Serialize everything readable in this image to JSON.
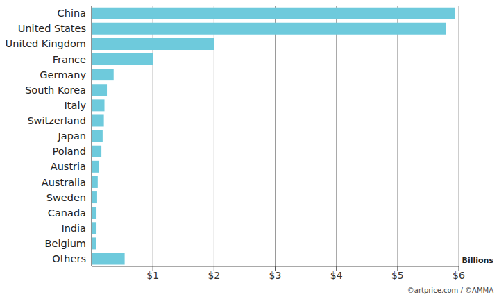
{
  "chart_data": {
    "type": "bar",
    "orientation": "horizontal",
    "x_label": "Billions",
    "source": "©artprice.com / ©AMMA",
    "categories": [
      "China",
      "United States",
      "United Kingdom",
      "France",
      "Germany",
      "South Korea",
      "Italy",
      "Switzerland",
      "Japan",
      "Poland",
      "Austria",
      "Australia",
      "Sweden",
      "Canada",
      "India",
      "Belgium",
      "Others"
    ],
    "values": [
      5.94,
      5.79,
      2.0,
      1.0,
      0.36,
      0.25,
      0.21,
      0.2,
      0.18,
      0.16,
      0.12,
      0.1,
      0.09,
      0.08,
      0.08,
      0.07,
      0.54
    ],
    "color": "#6ecadc",
    "xlim": [
      0,
      6
    ],
    "xticks": [
      {
        "value": 1,
        "label": "$1"
      },
      {
        "value": 2,
        "label": "$2"
      },
      {
        "value": 3,
        "label": "$3"
      },
      {
        "value": 4,
        "label": "$4"
      },
      {
        "value": 5,
        "label": "$5"
      },
      {
        "value": 6,
        "label": "$6"
      }
    ],
    "grid": true
  }
}
